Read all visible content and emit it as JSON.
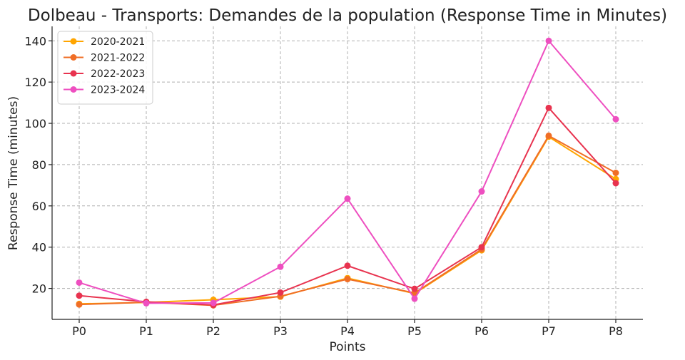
{
  "chart_data": {
    "type": "line",
    "title": "Dolbeau - Transports: Demandes de la population (Response Time in Minutes)",
    "xlabel": "Points",
    "ylabel": "Response Time (minutes)",
    "categories": [
      "P0",
      "P1",
      "P2",
      "P3",
      "P4",
      "P5",
      "P6",
      "P7",
      "P8"
    ],
    "ylim": [
      5,
      147
    ],
    "yticks": [
      20,
      40,
      60,
      80,
      100,
      120,
      140
    ],
    "grid": true,
    "legend_position": "top-left",
    "series": [
      {
        "name": "2020-2021",
        "color": "#ffa500",
        "values": [
          12.5,
          13.2,
          14.5,
          16.0,
          25.0,
          17.5,
          38.5,
          93.5,
          73.0
        ]
      },
      {
        "name": "2021-2022",
        "color": "#f06e26",
        "values": [
          12.2,
          13.3,
          11.8,
          16.2,
          24.5,
          17.8,
          39.0,
          94.0,
          76.0
        ]
      },
      {
        "name": "2022-2023",
        "color": "#e8334f",
        "values": [
          16.5,
          13.5,
          12.0,
          18.0,
          31.0,
          19.8,
          40.0,
          107.5,
          71.0
        ]
      },
      {
        "name": "2023-2024",
        "color": "#ee4fc0",
        "values": [
          22.8,
          12.8,
          13.0,
          30.5,
          63.5,
          15.0,
          67.0,
          140.0,
          102.0
        ]
      }
    ]
  }
}
